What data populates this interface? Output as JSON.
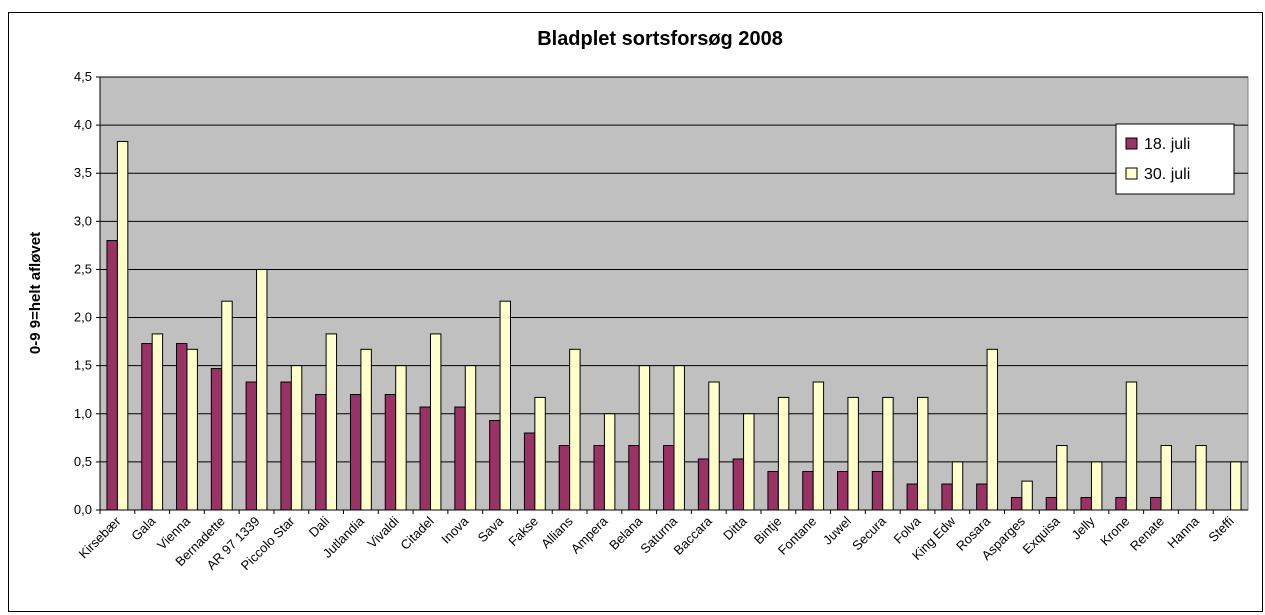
{
  "chart_data": {
    "type": "bar",
    "title": "Bladplet sortsforsøg 2008",
    "y_label": "0-9  9=helt afløvet",
    "categories": [
      "Kirsebær",
      "Gala",
      "Vienna",
      "Bernadette",
      "AR 97 1339",
      "Piccolo Star",
      "Dali",
      "Jutlandia",
      "Vivaldi",
      "Citadel",
      "Inova",
      "Sava",
      "Fakse",
      "Allians",
      "Ampera",
      "Belana",
      "Saturna",
      "Baccara",
      "Ditta",
      "Bintje",
      "Fontane",
      "Juwel",
      "Secura",
      "Folva",
      "King Edw",
      "Rosara",
      "Asparges",
      "Exquisa",
      "Jelly",
      "Krone",
      "Renate",
      "Hanna",
      "Steffi"
    ],
    "series": [
      {
        "name": "18. juli",
        "color": "#993366",
        "values": [
          2.8,
          1.73,
          1.73,
          1.47,
          1.33,
          1.33,
          1.2,
          1.2,
          1.2,
          1.07,
          1.07,
          0.93,
          0.8,
          0.67,
          0.67,
          0.67,
          0.67,
          0.53,
          0.53,
          0.4,
          0.4,
          0.4,
          0.4,
          0.27,
          0.27,
          0.27,
          0.13,
          0.13,
          0.13,
          0.13,
          0.13,
          0,
          0
        ]
      },
      {
        "name": "30. juli",
        "color": "#ffffcc",
        "values": [
          3.83,
          1.83,
          1.67,
          2.17,
          2.5,
          1.5,
          1.83,
          1.67,
          1.5,
          1.83,
          1.5,
          2.17,
          1.17,
          1.67,
          1.0,
          1.5,
          1.5,
          1.33,
          1.0,
          1.17,
          1.33,
          1.17,
          1.17,
          1.17,
          0.5,
          1.67,
          0.3,
          0.67,
          0.5,
          1.33,
          0.67,
          0.67,
          0.5
        ]
      }
    ],
    "ylim": [
      0,
      4.5
    ],
    "yticks": [
      {
        "value": 0,
        "label": "0,0"
      },
      {
        "value": 0.5,
        "label": "0,5"
      },
      {
        "value": 1,
        "label": "1,0"
      },
      {
        "value": 1.5,
        "label": "1,5"
      },
      {
        "value": 2,
        "label": "2,0"
      },
      {
        "value": 2.5,
        "label": "2,5"
      },
      {
        "value": 3,
        "label": "3,0"
      },
      {
        "value": 3.5,
        "label": "3,5"
      },
      {
        "value": 4,
        "label": "4,0"
      },
      {
        "value": 4.5,
        "label": "4,5"
      }
    ],
    "grid": true,
    "plot_background": "#c0c0c0",
    "legend": "top-right"
  }
}
